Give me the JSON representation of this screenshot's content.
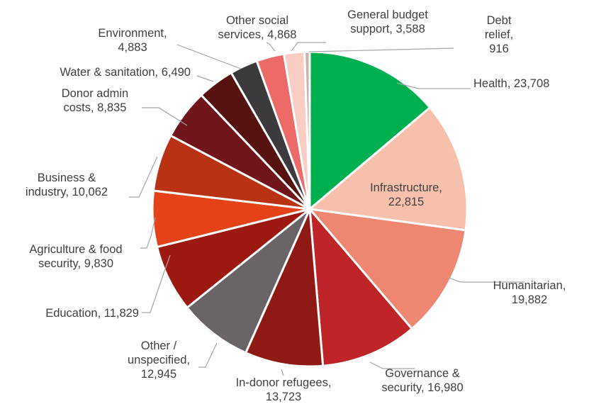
{
  "chart_data": {
    "type": "pie",
    "title": "",
    "slices": [
      {
        "lines": [
          "Health, 23,708"
        ],
        "value": 23708,
        "color": "#00b050"
      },
      {
        "lines": [
          "Infrastructure,",
          "22,815"
        ],
        "value": 22815,
        "color": "#f7c0ad"
      },
      {
        "lines": [
          "Humanitarian,",
          "19,882"
        ],
        "value": 19882,
        "color": "#ee8672"
      },
      {
        "lines": [
          "Governance &",
          "security, 16,980"
        ],
        "value": 16980,
        "color": "#bf2528"
      },
      {
        "lines": [
          "In-donor refugees,",
          "13,723"
        ],
        "value": 13723,
        "color": "#8f1914"
      },
      {
        "lines": [
          "Other /",
          "unspecified,",
          "12,945"
        ],
        "value": 12945,
        "color": "#6b6466"
      },
      {
        "lines": [
          "Education, 11,829"
        ],
        "value": 11829,
        "color": "#9e1812"
      },
      {
        "lines": [
          "Agriculture & food",
          "security, 9,830"
        ],
        "value": 9830,
        "color": "#e64219"
      },
      {
        "lines": [
          "Business &",
          "industry, 10,062"
        ],
        "value": 10062,
        "color": "#b93214"
      },
      {
        "lines": [
          "Donor admin",
          "costs, 8,835"
        ],
        "value": 8835,
        "color": "#6f151b"
      },
      {
        "lines": [
          "Water & sanitation, 6,490"
        ],
        "value": 6490,
        "color": "#561111"
      },
      {
        "lines": [
          "Environment,",
          "4,883"
        ],
        "value": 4883,
        "color": "#3d3a3d"
      },
      {
        "lines": [
          "Other social",
          "services, 4,868"
        ],
        "value": 4868,
        "color": "#ec6a68"
      },
      {
        "lines": [
          "General budget",
          "support, 3,588"
        ],
        "value": 3588,
        "color": "#f9cdc4"
      },
      {
        "lines": [
          "Debt",
          "relief,",
          "916"
        ],
        "value": 916,
        "color": "#c6b3ad"
      }
    ]
  }
}
